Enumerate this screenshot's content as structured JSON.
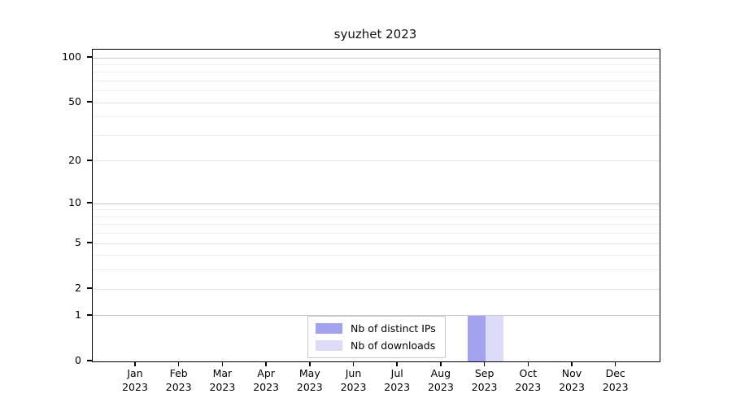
{
  "chart_data": {
    "type": "bar",
    "title": "syuzhet 2023",
    "categories": [
      {
        "month": "Jan",
        "year": "2023"
      },
      {
        "month": "Feb",
        "year": "2023"
      },
      {
        "month": "Mar",
        "year": "2023"
      },
      {
        "month": "Apr",
        "year": "2023"
      },
      {
        "month": "May",
        "year": "2023"
      },
      {
        "month": "Jun",
        "year": "2023"
      },
      {
        "month": "Jul",
        "year": "2023"
      },
      {
        "month": "Aug",
        "year": "2023"
      },
      {
        "month": "Sep",
        "year": "2023"
      },
      {
        "month": "Oct",
        "year": "2023"
      },
      {
        "month": "Nov",
        "year": "2023"
      },
      {
        "month": "Dec",
        "year": "2023"
      }
    ],
    "series": [
      {
        "name": "Nb of distinct IPs",
        "color": "#a2a2f0",
        "values": [
          0,
          0,
          0,
          0,
          0,
          0,
          0,
          0,
          1,
          0,
          0,
          0
        ]
      },
      {
        "name": "Nb of downloads",
        "color": "#dcdcf8",
        "values": [
          0,
          0,
          0,
          0,
          0,
          0,
          0,
          0,
          1,
          0,
          0,
          0
        ]
      }
    ],
    "yscale": "log1p",
    "ylim": [
      0,
      113
    ],
    "y_ticks": [
      0,
      1,
      2,
      5,
      10,
      20,
      50,
      100
    ],
    "y_minor_gridlines": [
      3,
      4,
      6,
      7,
      8,
      9,
      30,
      40,
      60,
      70,
      80,
      90
    ],
    "grid": true,
    "legend_position": "bottom-center-inside",
    "colors": {
      "decade_gridline": "#c9c9c9",
      "labeled_gridline": "#e3e3e3",
      "minor_gridline": "#efefef",
      "axis": "#000000",
      "background": "#ffffff"
    }
  }
}
